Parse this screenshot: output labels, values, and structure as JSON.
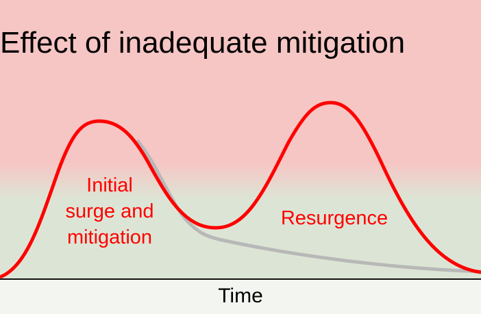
{
  "title": "Effect of inadequate mitigation",
  "labels": {
    "initial": [
      "Initial",
      "surge and",
      "mitigation"
    ],
    "resurgence": "Resurgence"
  },
  "x_axis_label": "Time",
  "colors": {
    "danger_zone": "#f6c6c4",
    "safe_zone": "#dce5d5",
    "actual_curve": "#ff0000",
    "mitigated_curve": "#b8b8b8"
  }
}
